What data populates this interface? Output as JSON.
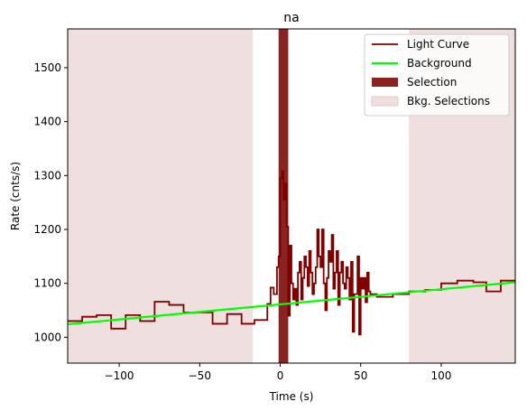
{
  "chart_data": {
    "type": "line",
    "title": "na",
    "xlabel": "Time (s)",
    "ylabel": "Rate (cnts/s)",
    "xlim": [
      -132,
      146
    ],
    "ylim": [
      952,
      1572
    ],
    "xticks": [
      -100,
      -50,
      0,
      50,
      100
    ],
    "yticks": [
      1000,
      1100,
      1200,
      1300,
      1400,
      1500
    ],
    "grid": false,
    "legend_position": "top-right",
    "legend": [
      {
        "label": "Light Curve",
        "kind": "line",
        "color": "#800000"
      },
      {
        "label": "Background",
        "kind": "line",
        "color": "#00ff00"
      },
      {
        "label": "Selection",
        "kind": "patch",
        "color": "#8b2323"
      },
      {
        "label": "Bkg. Selections",
        "kind": "patch",
        "color": "#efdfdf"
      }
    ],
    "selection": {
      "range": [
        -1,
        5
      ],
      "color": "#8b2323"
    },
    "bkg_selections": [
      {
        "range": [
          -132,
          -17
        ]
      },
      {
        "range": [
          80,
          146
        ]
      }
    ],
    "bkg_selection_color": "#efdfdf",
    "background": {
      "x": [
        -132,
        146
      ],
      "y": [
        1024,
        1102
      ],
      "color": "#00ff00"
    },
    "light_curve": {
      "color": "#800000",
      "x": [
        -132,
        -123,
        -114,
        -105,
        -96,
        -87,
        -78,
        -69,
        -60,
        -51,
        -42,
        -33,
        -24,
        -16,
        -8,
        -6,
        -4,
        -2,
        -1,
        0,
        1,
        2,
        3,
        4,
        5,
        6,
        7,
        8,
        9,
        10,
        11,
        12,
        13,
        14,
        15,
        16,
        17,
        18,
        19,
        20,
        21,
        22,
        23,
        24,
        25,
        26,
        27,
        28,
        29,
        30,
        31,
        32,
        33,
        34,
        35,
        36,
        37,
        38,
        39,
        40,
        41,
        42,
        43,
        44,
        45,
        46,
        47,
        48,
        49,
        50,
        51,
        52,
        53,
        54,
        55,
        56,
        60,
        70,
        80,
        90,
        100,
        110,
        120,
        128,
        137
      ],
      "y": [
        1030,
        1038,
        1041,
        1016,
        1041,
        1030,
        1066,
        1060,
        1046,
        1046,
        1025,
        1043,
        1025,
        1032,
        1062,
        1092,
        1080,
        1130,
        1150,
        1295,
        1308,
        1255,
        1285,
        1205,
        1040,
        1170,
        1100,
        1070,
        1090,
        1060,
        1120,
        1140,
        1070,
        1110,
        1150,
        1130,
        1095,
        1160,
        1120,
        1080,
        1100,
        1130,
        1200,
        1150,
        1130,
        1200,
        1100,
        1050,
        1110,
        1160,
        1140,
        1190,
        1090,
        1120,
        1160,
        1060,
        1120,
        1140,
        1100,
        1090,
        1130,
        1110,
        1070,
        1140,
        1010,
        1080,
        1080,
        1150,
        1005,
        1110,
        1090,
        1110,
        1065,
        1120,
        1085,
        1080,
        1075,
        1080,
        1085,
        1088,
        1100,
        1105,
        1102,
        1085,
        1105
      ]
    }
  }
}
